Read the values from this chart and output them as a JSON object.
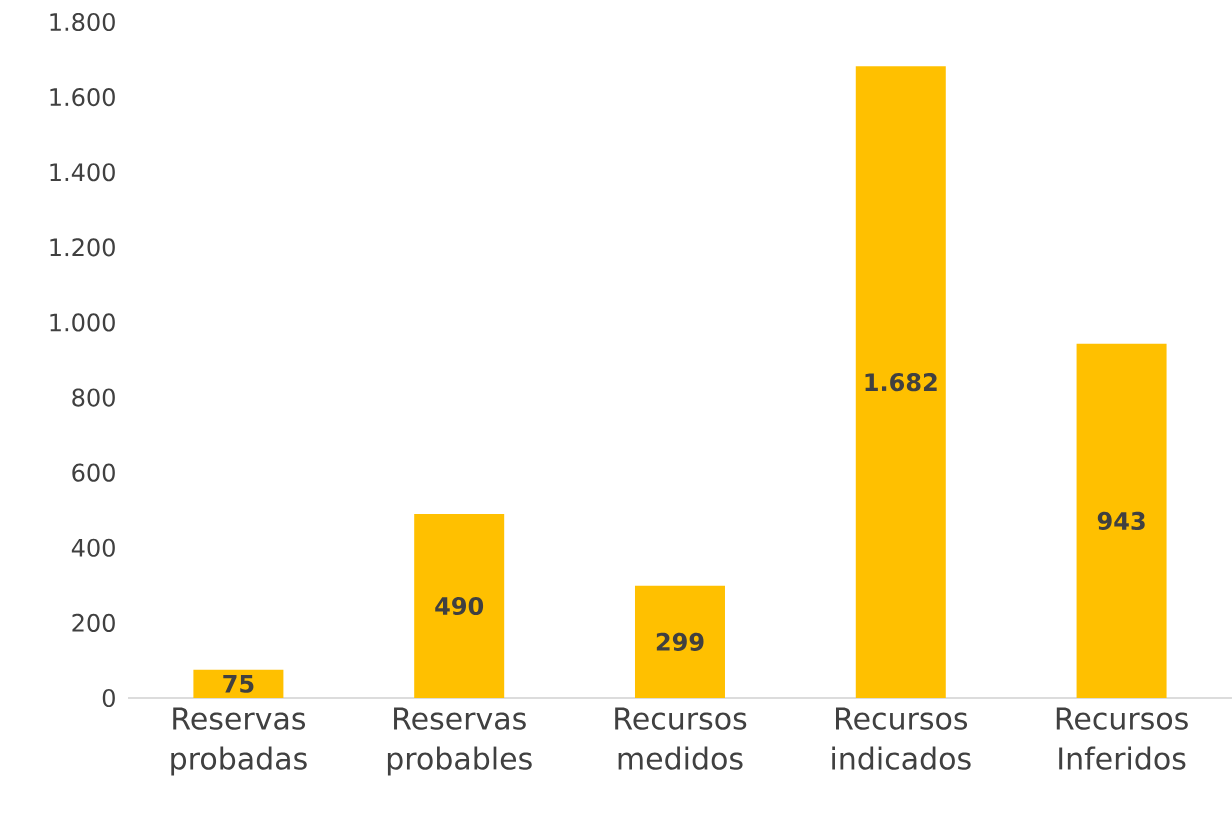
{
  "chart_data": {
    "type": "bar",
    "categories": [
      "Reservas probadas",
      "Reservas probables",
      "Recursos medidos",
      "Recursos indicados",
      "Recursos Inferidos"
    ],
    "values": [
      75,
      490,
      299,
      1682,
      943
    ],
    "value_labels": [
      "75",
      "490",
      "299",
      "1.682",
      "943"
    ],
    "color": "#ffc000",
    "ylim": [
      0,
      1800
    ],
    "yticks": [
      0,
      200,
      400,
      600,
      800,
      {
        "value": 1000,
        "label": "1.000"
      },
      {
        "value": 1200,
        "label": "1.200"
      },
      {
        "value": 1400,
        "label": "1.400"
      },
      {
        "value": 1600,
        "label": "1.600"
      },
      {
        "value": 1800,
        "label": "1.800"
      }
    ]
  }
}
